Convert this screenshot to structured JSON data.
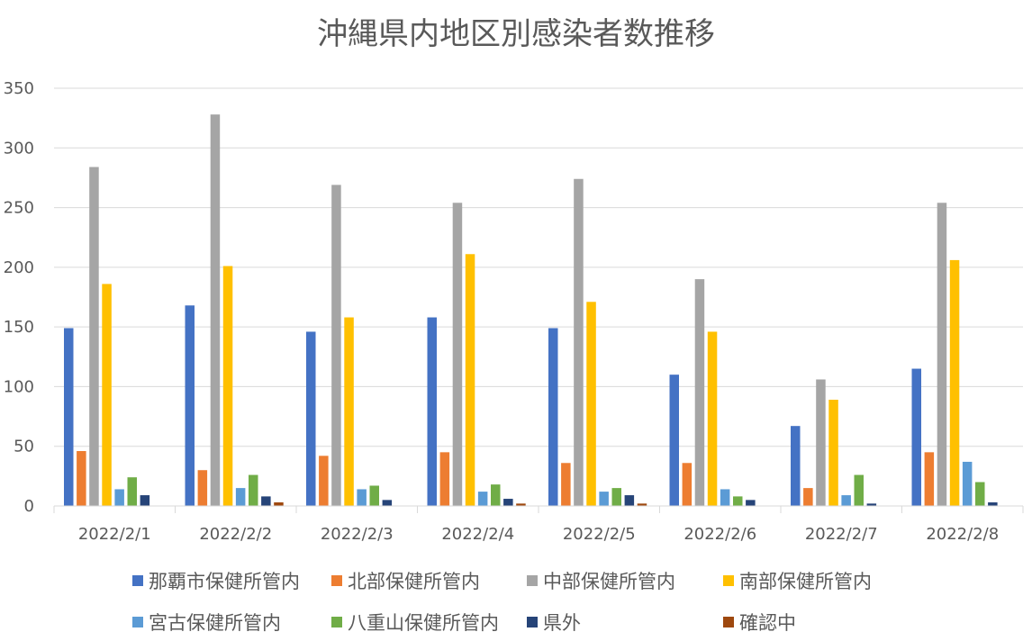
{
  "chart_data": {
    "type": "bar",
    "title": "沖縄県内地区別感染者数推移",
    "xlabel": "",
    "ylabel": "",
    "ylim": [
      0,
      350
    ],
    "yticks": [
      0,
      50,
      100,
      150,
      200,
      250,
      300,
      350
    ],
    "grid": true,
    "legend_position": "bottom",
    "categories": [
      "2022/2/1",
      "2022/2/2",
      "2022/2/3",
      "2022/2/4",
      "2022/2/5",
      "2022/2/6",
      "2022/2/7",
      "2022/2/8"
    ],
    "series": [
      {
        "name": "那覇市保健所管内",
        "color": "#4472C4",
        "values": [
          149,
          168,
          146,
          158,
          149,
          110,
          67,
          115
        ]
      },
      {
        "name": "北部保健所管内",
        "color": "#ED7D31",
        "values": [
          46,
          30,
          42,
          45,
          36,
          36,
          15,
          45
        ]
      },
      {
        "name": "中部保健所管内",
        "color": "#A5A5A5",
        "values": [
          284,
          328,
          269,
          254,
          274,
          190,
          106,
          254
        ]
      },
      {
        "name": "南部保健所管内",
        "color": "#FFC000",
        "values": [
          186,
          201,
          158,
          211,
          171,
          146,
          89,
          206
        ]
      },
      {
        "name": "宮古保健所管内",
        "color": "#5B9BD5",
        "values": [
          14,
          15,
          14,
          12,
          12,
          14,
          9,
          37
        ]
      },
      {
        "name": "八重山保健所管内",
        "color": "#70AD47",
        "values": [
          24,
          26,
          17,
          18,
          15,
          8,
          26,
          20
        ]
      },
      {
        "name": "県外",
        "color": "#264478",
        "values": [
          9,
          8,
          5,
          6,
          9,
          5,
          2,
          3
        ]
      },
      {
        "name": "確認中",
        "color": "#9E480E",
        "values": [
          0,
          3,
          0,
          2,
          2,
          0,
          0,
          0
        ]
      }
    ]
  }
}
